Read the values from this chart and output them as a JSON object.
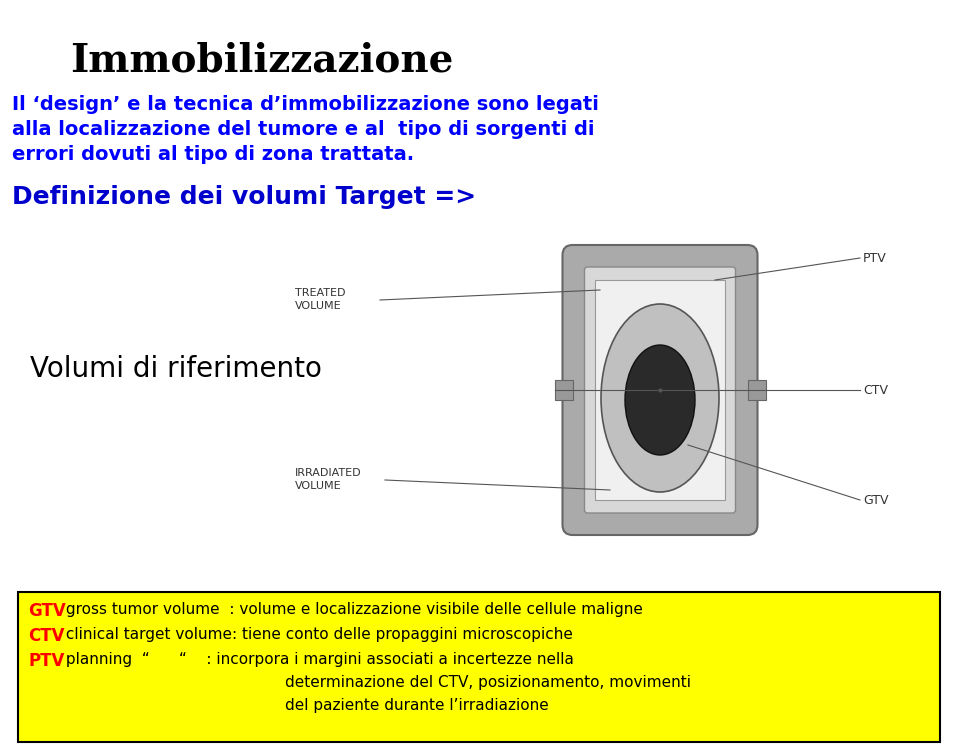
{
  "title": "Immobilizzazione",
  "title_color": "#000000",
  "line1": "Il ‘design’ e la tecnica d’immobilizzazione sono legati",
  "line2": "alla localizzazione del tumore e al  tipo di sorgenti di",
  "line3": "errori dovuti al tipo di zona trattata.",
  "body_color": "#0000FF",
  "section_title": "Definizione dei volumi Target =>",
  "section_color": "#0000CD",
  "sub_title": "Volumi di riferimento",
  "sub_color": "#000000",
  "bg_color": "#FFFFFF",
  "yellow_box_color": "#FFFF00",
  "yellow_box_border": "#000000",
  "gtv_color": "#FF0000",
  "ctv_color": "#FF0000",
  "ptv_color": "#FF0000",
  "gtv_label": "GTV",
  "gtv_text": " gross tumor volume  : volume e localizzazione visibile delle cellule maligne",
  "ctv_label": "CTV",
  "ctv_text": " clinical target volume: tiene conto delle propaggini microscopiche",
  "ptv_label": "PTV",
  "ptv_text": " planning  “      “    : incorpora i margini associati a incertezze nella",
  "ptv_text2": "determinazione del CTV, posizionamento, movimenti",
  "ptv_text3": "del paziente durante l’irradiazione",
  "diagram_label_ptv": "PTV",
  "diagram_label_ctv": "CTV",
  "diagram_label_gtv": "GTV",
  "diagram_label_treated": "TREATED\nVOLUME",
  "diagram_label_irradiated": "IRRADIATED\nVOLUME",
  "figw": 9.59,
  "figh": 7.51,
  "dpi": 100
}
